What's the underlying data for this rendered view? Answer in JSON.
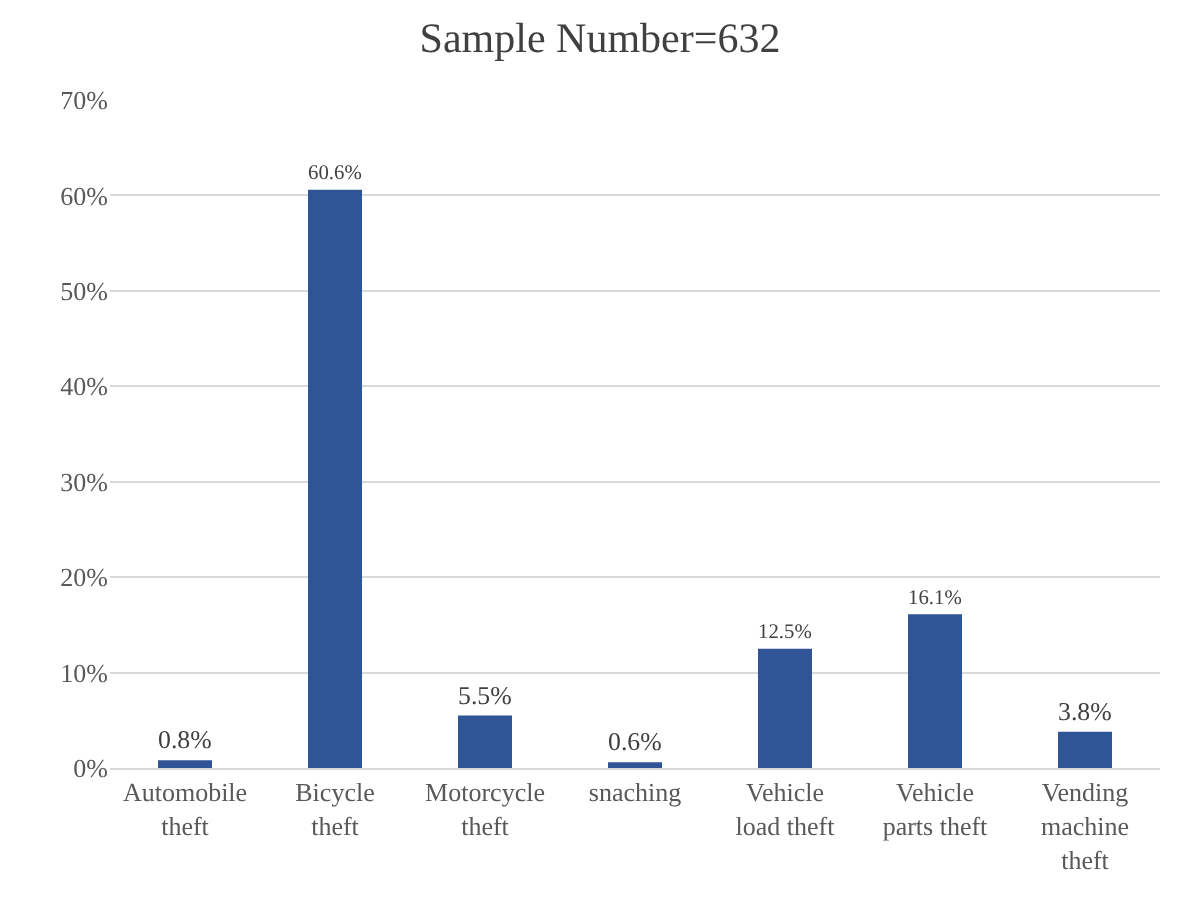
{
  "chart_data": {
    "type": "bar",
    "title": "Sample Number=632",
    "categories": [
      "Automobile theft",
      "Bicycle theft",
      "Motorcycle theft",
      "snaching",
      "Vehicle load theft",
      "Vehicle parts theft",
      "Vending machine theft"
    ],
    "values": [
      0.8,
      60.6,
      5.5,
      0.6,
      12.5,
      16.1,
      3.8
    ],
    "value_labels": [
      "0.8%",
      "60.6%",
      "5.5%",
      "0.6%",
      "12.5%",
      "16.1%",
      "3.8%"
    ],
    "color": "#2f5597",
    "ylim": [
      0,
      70
    ],
    "yticks": [
      {
        "value": 0,
        "label": "0%"
      },
      {
        "value": 10,
        "label": "10%"
      },
      {
        "value": 20,
        "label": "20%"
      },
      {
        "value": 30,
        "label": "30%"
      },
      {
        "value": 40,
        "label": "40%"
      },
      {
        "value": 50,
        "label": "50%"
      },
      {
        "value": 60,
        "label": "60%"
      },
      {
        "value": 70,
        "label": "70%"
      }
    ],
    "grid": "y"
  }
}
